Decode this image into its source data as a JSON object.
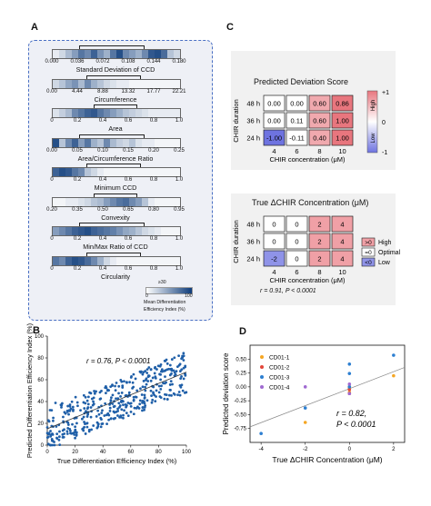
{
  "panels": {
    "A": "A",
    "B": "B",
    "C": "C",
    "D": "D"
  },
  "colors": {
    "blue_dark": "#0d3b7a",
    "blue_light": "#dfeaf6",
    "red_high": "#e8767e",
    "blue_low": "#6e73e0",
    "border_blue": "#4a70c4"
  },
  "panel_a": {
    "features": [
      {
        "name": "Standard Deviation of CCD",
        "ticks": [
          "0.000",
          "0.036",
          "0.072",
          "0.108",
          "0.144",
          "0.180"
        ]
      },
      {
        "name": "Circumference",
        "ticks": [
          "0.00",
          "4.44",
          "8.88",
          "13.32",
          "17.77",
          "22.21"
        ]
      },
      {
        "name": "Area",
        "ticks": [
          "0",
          "0.2",
          "0.4",
          "0.6",
          "0.8",
          "1.0"
        ]
      },
      {
        "name": "Area/Circumference Ratio",
        "ticks": [
          "0.00",
          "0.05",
          "0.10",
          "0.15",
          "0.20",
          "0.25"
        ]
      },
      {
        "name": "Minimum CCD",
        "ticks": [
          "0",
          "0.2",
          "0.4",
          "0.6",
          "0.8",
          "1.0"
        ]
      },
      {
        "name": "Convexity",
        "ticks": [
          "0.20",
          "0.35",
          "0.50",
          "0.65",
          "0.80",
          "0.95"
        ]
      },
      {
        "name": "Min/Max Ratio of CCD",
        "ticks": [
          "0",
          "0.2",
          "0.4",
          "0.6",
          "0.8",
          "1.0"
        ]
      },
      {
        "name": "Circularity",
        "ticks": [
          "0",
          "0.2",
          "0.4",
          "0.6",
          "0.8",
          "1.0"
        ]
      }
    ],
    "legend": {
      "top": "≥30",
      "min": "0",
      "max": "100",
      "label1": "Mean Differentiation",
      "label2": "Efficiency Index (%)"
    }
  },
  "panel_c1": {
    "title": "Predicted Deviation Score",
    "row_labels": [
      "48 h",
      "36 h",
      "24 h"
    ],
    "col_labels": [
      "4",
      "6",
      "8",
      "10"
    ],
    "ylabel": "CHIR duration",
    "xlabel": "CHIR concentration (μM)",
    "values": [
      [
        "0.00",
        "0.00",
        "0.60",
        "0.86"
      ],
      [
        "0.00",
        "0.11",
        "0.60",
        "1.00"
      ],
      [
        "-1.00",
        "-0.11",
        "0.40",
        "1.00"
      ]
    ],
    "colorbar": {
      "top": "+1",
      "mid": "0",
      "bottom": "-1",
      "high": "High",
      "low": "Low"
    }
  },
  "panel_c2": {
    "title": "True ΔCHIR Concentration (μM)",
    "row_labels": [
      "48 h",
      "36 h",
      "24 h"
    ],
    "col_labels": [
      "4",
      "6",
      "8",
      "10"
    ],
    "ylabel": "CHIR duration",
    "xlabel": "CHIR concentration (μM)",
    "values": [
      [
        "0",
        "0",
        "2",
        "4"
      ],
      [
        "0",
        "0",
        "2",
        "4"
      ],
      [
        "-2",
        "0",
        "2",
        "4"
      ]
    ],
    "legend": [
      {
        "key": ">0",
        "label": "High"
      },
      {
        "key": "=0",
        "label": "Optimal"
      },
      {
        "key": "<0",
        "label": "Low"
      }
    ],
    "stat": "r = 0.91,  P < 0.0001"
  },
  "chart_data": [
    {
      "type": "scatter",
      "panel": "B",
      "xlabel": "True Differentiation Efficiency Index (%)",
      "ylabel": "Predicted Differentiation Efficiency Index (%)",
      "xlim": [
        0,
        100
      ],
      "ylim": [
        0,
        100
      ],
      "x_ticks": [
        "0",
        "20",
        "40",
        "60",
        "80",
        "100"
      ],
      "y_ticks": [
        "0",
        "20",
        "40",
        "60",
        "80",
        "100"
      ],
      "annotation": "r = 0.76, P < 0.0001",
      "trend": {
        "x": [
          0,
          100
        ],
        "y": [
          15,
          67
        ]
      }
    },
    {
      "type": "scatter",
      "panel": "D",
      "xlabel": "True ΔCHIR Concentration (μM)",
      "ylabel": "Predicted deviation score",
      "xlim": [
        -4.5,
        2.5
      ],
      "ylim": [
        -1.0,
        0.75
      ],
      "x_ticks": [
        "-4",
        "-2",
        "0",
        "2"
      ],
      "y_ticks": [
        "-0.75",
        "-0.50",
        "-0.25",
        "0.00",
        "0.25",
        "0.50"
      ],
      "annotation_r": "r = 0.82,",
      "annotation_p": "P < 0.0001",
      "series": [
        {
          "name": "CD01-1",
          "color": "#f5a623",
          "points": [
            [
              -2,
              -0.64
            ],
            [
              0,
              -0.02
            ],
            [
              0,
              -0.1
            ],
            [
              0,
              0.0
            ],
            [
              2,
              0.2
            ]
          ]
        },
        {
          "name": "CD01-2",
          "color": "#e2463a",
          "points": [
            [
              0,
              -0.05
            ],
            [
              0,
              0.0
            ],
            [
              0,
              -0.12
            ]
          ]
        },
        {
          "name": "CD01-3",
          "color": "#2d7fd1",
          "points": [
            [
              -4,
              -0.84
            ],
            [
              -2,
              -0.38
            ],
            [
              0,
              0.41
            ],
            [
              0,
              0.24
            ],
            [
              0,
              0.0
            ],
            [
              2,
              0.57
            ]
          ]
        },
        {
          "name": "CD01-4",
          "color": "#a06ad1",
          "points": [
            [
              -2,
              0.0
            ],
            [
              0,
              -0.12
            ],
            [
              0,
              0.05
            ]
          ]
        }
      ],
      "trend": {
        "x": [
          -4.5,
          2.5
        ],
        "y": [
          -0.72,
          0.35
        ]
      }
    }
  ]
}
